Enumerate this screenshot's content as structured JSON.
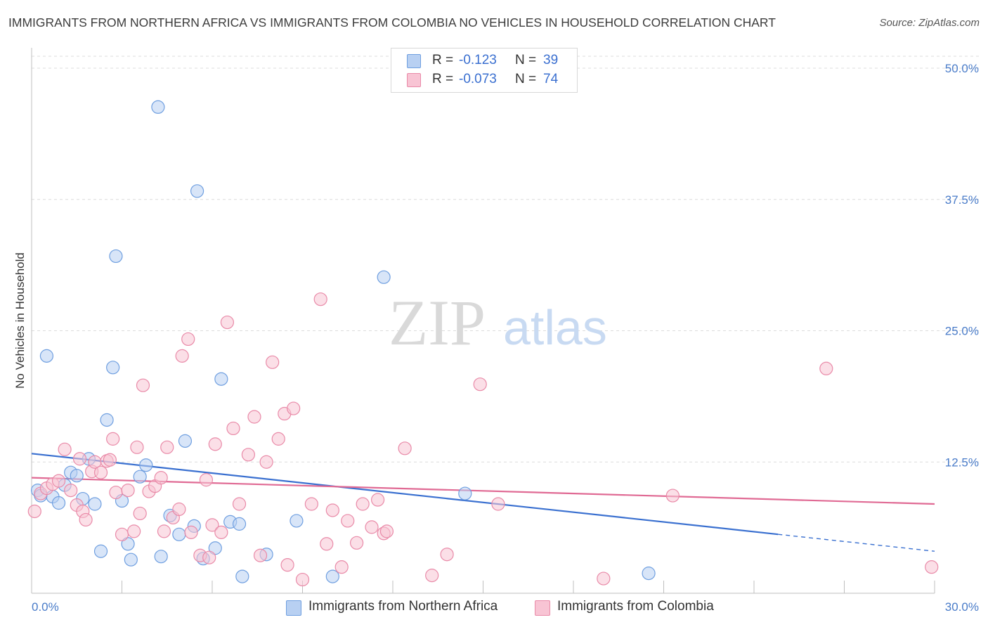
{
  "title": "IMMIGRANTS FROM NORTHERN AFRICA VS IMMIGRANTS FROM COLOMBIA NO VEHICLES IN HOUSEHOLD CORRELATION CHART",
  "source": "Source: ZipAtlas.com",
  "watermark": {
    "zip": "ZIP",
    "atlas": "atlas"
  },
  "legend": {
    "r_label": "R =",
    "n_label": "N =",
    "series": [
      {
        "name": "Immigrants from Northern Africa",
        "r": "-0.123",
        "n": "39",
        "fill": "#b8d0f2",
        "stroke": "#6f9fe0"
      },
      {
        "name": "Immigrants from Colombia",
        "r": "-0.073",
        "n": "74",
        "fill": "#f8c4d4",
        "stroke": "#e98aa8"
      }
    ]
  },
  "chart_data": {
    "type": "scatter",
    "ylabel": "No Vehicles in Household",
    "xlim": [
      0,
      30
    ],
    "ylim": [
      0,
      50
    ],
    "x_ticks": [
      "0.0%",
      "30.0%"
    ],
    "y_ticks": [
      {
        "v": 12.5,
        "label": "12.5%"
      },
      {
        "v": 25.0,
        "label": "25.0%"
      },
      {
        "v": 37.5,
        "label": "37.5%"
      },
      {
        "v": 50.0,
        "label": "50.0%"
      }
    ],
    "grid": true,
    "series": [
      {
        "name": "Immigrants from Northern Africa",
        "color": "#6f9fe0",
        "fill": "#b8d0f2",
        "trend": {
          "x0": 0,
          "y0": 13.3,
          "x1": 30,
          "y1": 4.0,
          "solid_until": 24.8
        },
        "points": [
          [
            0.2,
            9.8
          ],
          [
            0.5,
            22.6
          ],
          [
            0.7,
            9.2
          ],
          [
            0.9,
            8.6
          ],
          [
            1.1,
            10.3
          ],
          [
            1.3,
            11.5
          ],
          [
            1.5,
            11.2
          ],
          [
            1.7,
            9.0
          ],
          [
            1.9,
            12.8
          ],
          [
            2.1,
            8.5
          ],
          [
            2.3,
            4.0
          ],
          [
            2.5,
            16.5
          ],
          [
            2.7,
            21.5
          ],
          [
            2.8,
            32.1
          ],
          [
            3.0,
            8.8
          ],
          [
            3.2,
            4.7
          ],
          [
            3.3,
            3.2
          ],
          [
            3.6,
            11.1
          ],
          [
            3.8,
            12.2
          ],
          [
            4.2,
            46.3
          ],
          [
            4.3,
            3.5
          ],
          [
            4.6,
            7.4
          ],
          [
            4.9,
            5.6
          ],
          [
            5.1,
            14.5
          ],
          [
            5.4,
            6.4
          ],
          [
            5.5,
            38.3
          ],
          [
            5.7,
            3.3
          ],
          [
            6.1,
            4.3
          ],
          [
            6.3,
            20.4
          ],
          [
            6.6,
            6.8
          ],
          [
            6.9,
            6.6
          ],
          [
            7.0,
            1.6
          ],
          [
            7.8,
            3.7
          ],
          [
            8.8,
            6.9
          ],
          [
            10.0,
            1.6
          ],
          [
            11.7,
            30.1
          ],
          [
            14.4,
            9.5
          ],
          [
            20.5,
            1.9
          ],
          [
            0.3,
            9.3
          ]
        ]
      },
      {
        "name": "Immigrants from Colombia",
        "color": "#e98aa8",
        "fill": "#f8c4d4",
        "trend": {
          "x0": 0,
          "y0": 11.0,
          "x1": 30,
          "y1": 8.5,
          "solid_until": 30
        },
        "points": [
          [
            0.1,
            7.8
          ],
          [
            0.3,
            9.5
          ],
          [
            0.5,
            10.0
          ],
          [
            0.7,
            10.4
          ],
          [
            0.9,
            10.7
          ],
          [
            1.1,
            13.7
          ],
          [
            1.3,
            9.8
          ],
          [
            1.5,
            8.4
          ],
          [
            1.6,
            12.8
          ],
          [
            1.7,
            7.8
          ],
          [
            1.8,
            7.0
          ],
          [
            2.0,
            11.6
          ],
          [
            2.1,
            12.5
          ],
          [
            2.3,
            11.5
          ],
          [
            2.5,
            12.6
          ],
          [
            2.6,
            12.7
          ],
          [
            2.7,
            14.7
          ],
          [
            2.8,
            9.6
          ],
          [
            3.0,
            5.6
          ],
          [
            3.2,
            9.8
          ],
          [
            3.4,
            5.9
          ],
          [
            3.5,
            13.9
          ],
          [
            3.6,
            7.6
          ],
          [
            3.7,
            19.8
          ],
          [
            3.9,
            9.7
          ],
          [
            4.1,
            10.2
          ],
          [
            4.3,
            11.0
          ],
          [
            4.4,
            5.9
          ],
          [
            4.5,
            13.9
          ],
          [
            4.7,
            7.2
          ],
          [
            4.9,
            8.0
          ],
          [
            5.0,
            22.6
          ],
          [
            5.2,
            24.2
          ],
          [
            5.3,
            5.8
          ],
          [
            5.6,
            3.6
          ],
          [
            5.8,
            10.8
          ],
          [
            5.9,
            3.4
          ],
          [
            6.0,
            6.5
          ],
          [
            6.1,
            14.2
          ],
          [
            6.3,
            5.8
          ],
          [
            6.5,
            25.8
          ],
          [
            6.7,
            15.7
          ],
          [
            6.9,
            8.5
          ],
          [
            7.2,
            13.2
          ],
          [
            7.4,
            16.8
          ],
          [
            7.6,
            3.6
          ],
          [
            7.8,
            12.5
          ],
          [
            8.0,
            22.0
          ],
          [
            8.2,
            14.7
          ],
          [
            8.4,
            17.1
          ],
          [
            8.5,
            2.7
          ],
          [
            8.7,
            17.6
          ],
          [
            9.0,
            1.3
          ],
          [
            9.3,
            8.5
          ],
          [
            9.6,
            28.0
          ],
          [
            9.8,
            4.7
          ],
          [
            10.0,
            7.9
          ],
          [
            10.3,
            2.5
          ],
          [
            10.5,
            6.9
          ],
          [
            10.8,
            4.8
          ],
          [
            11.0,
            8.5
          ],
          [
            11.3,
            6.3
          ],
          [
            11.5,
            8.9
          ],
          [
            11.7,
            5.7
          ],
          [
            11.8,
            5.9
          ],
          [
            12.4,
            13.8
          ],
          [
            13.3,
            1.7
          ],
          [
            13.8,
            3.7
          ],
          [
            14.9,
            19.9
          ],
          [
            15.5,
            8.5
          ],
          [
            19.0,
            1.4
          ],
          [
            21.3,
            9.3
          ],
          [
            26.4,
            21.4
          ],
          [
            29.9,
            2.5
          ]
        ]
      }
    ]
  }
}
